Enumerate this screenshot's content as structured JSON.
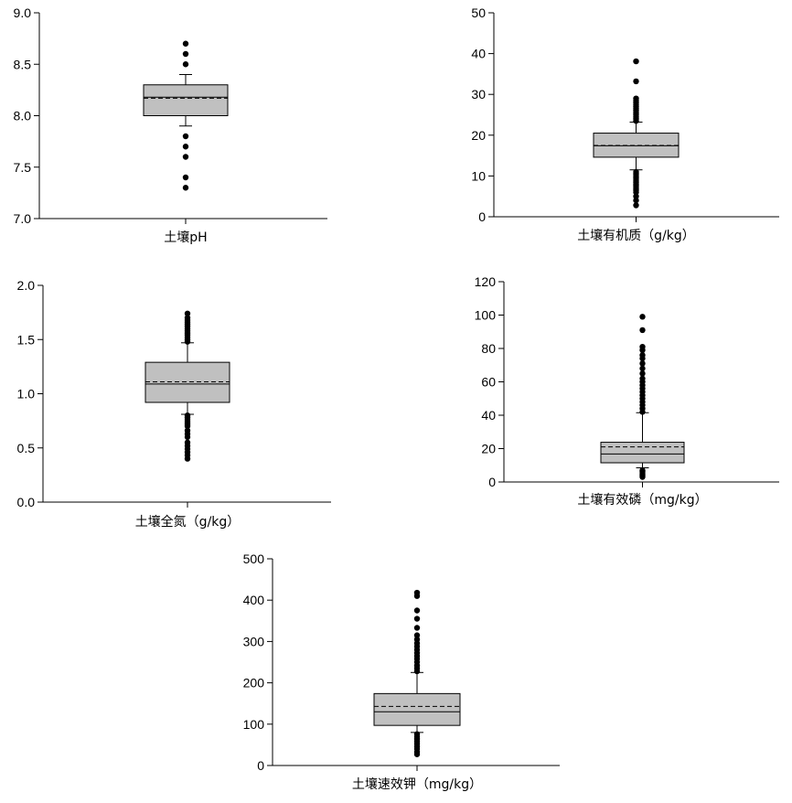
{
  "chart_data": [
    {
      "type": "box",
      "xlabel": "土壤pH",
      "ylim": [
        7.0,
        9.0
      ],
      "yticks": [
        "7.0",
        "7.5",
        "8.0",
        "8.5",
        "9.0"
      ],
      "yticks_values": [
        7.0,
        7.5,
        8.0,
        8.5,
        9.0
      ],
      "box": {
        "whisker_low": 7.9,
        "q1": 8.0,
        "median": 8.18,
        "mean": 8.17,
        "q3": 8.3,
        "whisker_high": 8.4
      },
      "outliers": [
        8.5,
        8.6,
        8.7,
        7.8,
        7.7,
        7.6,
        7.4,
        7.3
      ]
    },
    {
      "type": "box",
      "xlabel": "土壤有机质（g/kg）",
      "ylim": [
        0,
        50
      ],
      "yticks": [
        "0",
        "10",
        "20",
        "30",
        "40",
        "50"
      ],
      "yticks_values": [
        0,
        10,
        20,
        30,
        40,
        50
      ],
      "box": {
        "whisker_low": 11.5,
        "q1": 14.6,
        "median": 17.4,
        "mean": 17.5,
        "q3": 20.5,
        "whisker_high": 23.2
      },
      "outliers": [
        23.5,
        24,
        24.5,
        25,
        25.5,
        26,
        26.5,
        27,
        27.5,
        28,
        28.5,
        29,
        33.2,
        38.1,
        11,
        10.5,
        10,
        9.5,
        9,
        8.5,
        8,
        7.5,
        7,
        6.5,
        6,
        5,
        4,
        2.8
      ]
    },
    {
      "type": "box",
      "xlabel": "土壤全氮（g/kg）",
      "ylim": [
        0.0,
        2.0
      ],
      "yticks": [
        "0.0",
        "0.5",
        "1.0",
        "1.5",
        "2.0"
      ],
      "yticks_values": [
        0.0,
        0.5,
        1.0,
        1.5,
        2.0
      ],
      "box": {
        "whisker_low": 0.81,
        "q1": 0.92,
        "median": 1.09,
        "mean": 1.11,
        "q3": 1.29,
        "whisker_high": 1.47
      },
      "outliers": [
        1.48,
        1.5,
        1.52,
        1.54,
        1.56,
        1.58,
        1.6,
        1.62,
        1.64,
        1.66,
        1.68,
        1.7,
        1.74,
        0.8,
        0.78,
        0.76,
        0.74,
        0.72,
        0.7,
        0.66,
        0.63,
        0.6,
        0.55,
        0.52,
        0.49,
        0.46,
        0.43,
        0.4
      ]
    },
    {
      "type": "box",
      "xlabel": "土壤有效磷（mg/kg）",
      "ylim": [
        0,
        120
      ],
      "yticks": [
        "0",
        "20",
        "40",
        "60",
        "80",
        "100",
        "120"
      ],
      "yticks_values": [
        0,
        20,
        40,
        60,
        80,
        100,
        120
      ],
      "box": {
        "whisker_low": 8.5,
        "q1": 11.5,
        "median": 16.8,
        "mean": 21.0,
        "q3": 23.8,
        "whisker_high": 41.5
      },
      "outliers": [
        42,
        44,
        46,
        48,
        50,
        52,
        54,
        56,
        58,
        60,
        62,
        65,
        68,
        71,
        74,
        76,
        79,
        81,
        91,
        99,
        7,
        6,
        5,
        4,
        3
      ]
    },
    {
      "type": "box",
      "xlabel": "土壤速效钾（mg/kg）",
      "ylim": [
        0,
        500
      ],
      "yticks": [
        "0",
        "100",
        "200",
        "300",
        "400",
        "500"
      ],
      "yticks_values": [
        0,
        100,
        200,
        300,
        400,
        500
      ],
      "box": {
        "whisker_low": 80,
        "q1": 97,
        "median": 130,
        "mean": 143,
        "q3": 174,
        "whisker_high": 225
      },
      "outliers": [
        228,
        235,
        242,
        250,
        258,
        265,
        272,
        280,
        288,
        296,
        305,
        315,
        333,
        355,
        375,
        410,
        418,
        76,
        70,
        64,
        58,
        52,
        46,
        40,
        33,
        27
      ]
    }
  ]
}
